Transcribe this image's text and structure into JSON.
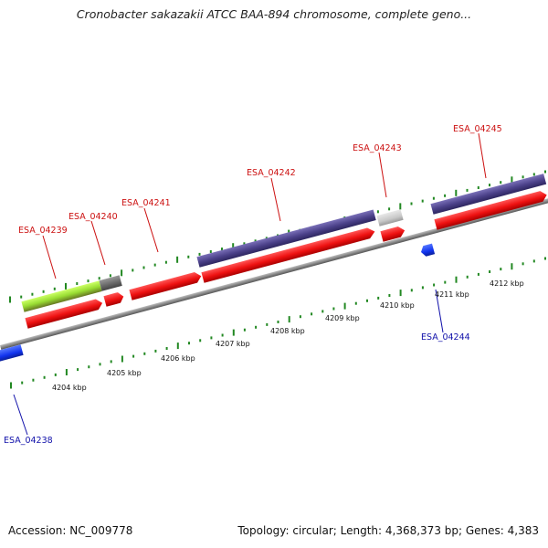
{
  "title": "Cronobacter sakazakii ATCC BAA-894 chromosome, complete geno...",
  "footer": {
    "accession": "Accession: NC_009778",
    "summary": "Topology: circular; Length: 4,368,373 bp; Genes: 4,383"
  },
  "colors": {
    "forward_cds": "#ee1c1c",
    "feature_purple": "#4a4088",
    "feature_green": "#99dd33",
    "feature_dark_gray": "#666666",
    "feature_light_gray": "#c8c8c8",
    "reverse_cds": "#1133ee",
    "tick": "#228822",
    "backbone": "#888888",
    "forward_label": "#cc1111",
    "reverse_label": "#1111aa"
  },
  "scale_labels": [
    "4204 kbp",
    "4205 kbp",
    "4206 kbp",
    "4207 kbp",
    "4208 kbp",
    "4209 kbp",
    "4210 kbp",
    "4211 kbp",
    "4212 kbp"
  ],
  "gene_labels": [
    {
      "id": "ESA_04238",
      "strand": "reverse"
    },
    {
      "id": "ESA_04239",
      "strand": "forward"
    },
    {
      "id": "ESA_04240",
      "strand": "forward"
    },
    {
      "id": "ESA_04241",
      "strand": "forward"
    },
    {
      "id": "ESA_04242",
      "strand": "forward"
    },
    {
      "id": "ESA_04243",
      "strand": "forward"
    },
    {
      "id": "ESA_04244",
      "strand": "reverse"
    },
    {
      "id": "ESA_04245",
      "strand": "forward"
    }
  ]
}
